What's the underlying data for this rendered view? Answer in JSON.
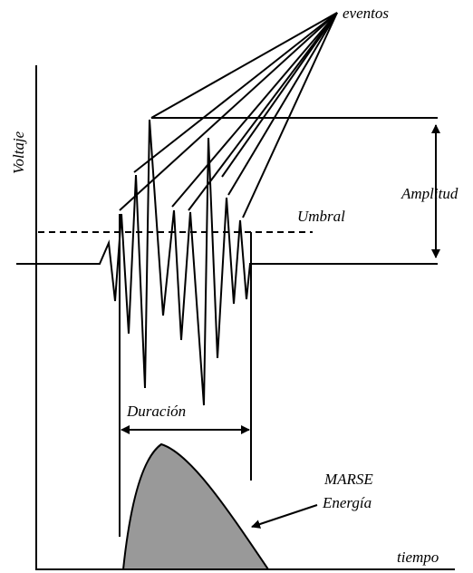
{
  "labels": {
    "events": "eventos",
    "y_axis": "Voltaje",
    "amplitude": "Amplitud",
    "threshold": "Umbral",
    "duration": "Duración",
    "marse": "MARSE",
    "energy": "Energía",
    "x_axis": "tiempo"
  }
}
